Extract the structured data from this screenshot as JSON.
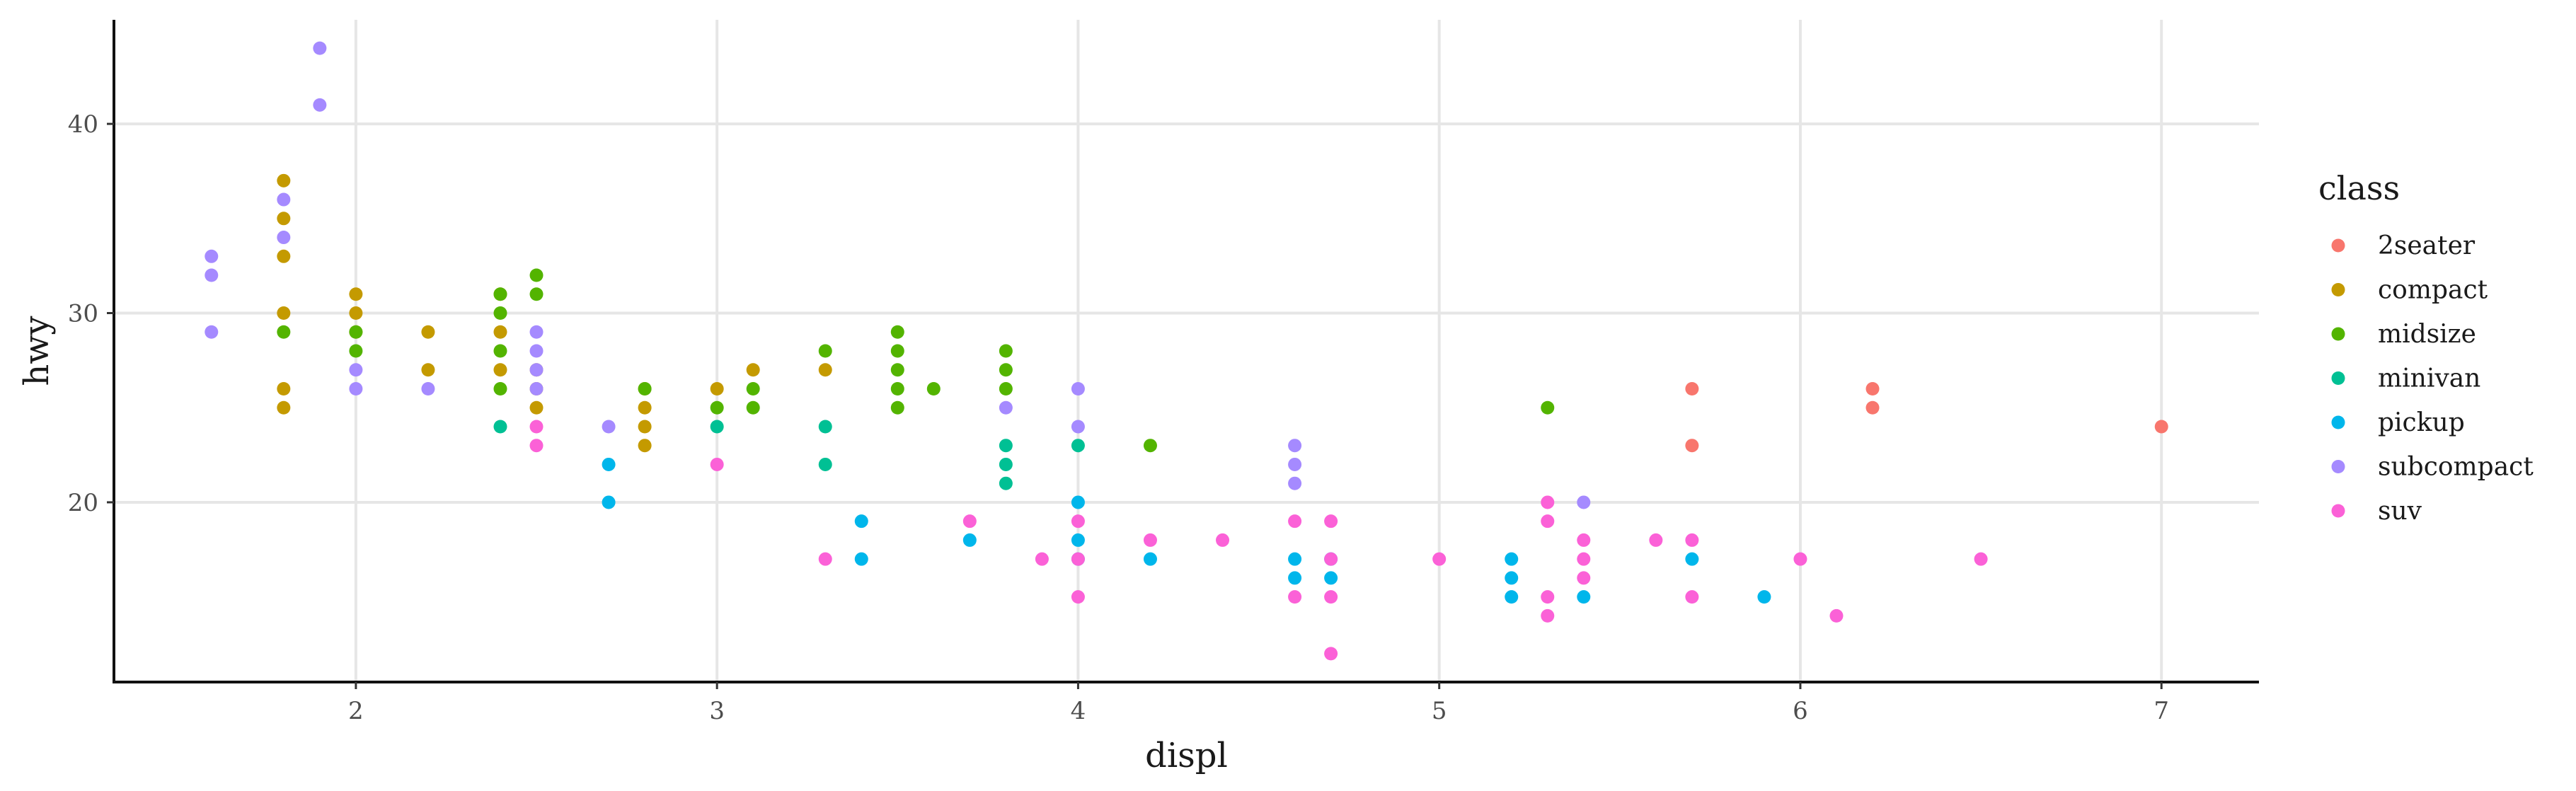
{
  "chart_data": {
    "type": "scatter",
    "title": "",
    "xlabel": "displ",
    "ylabel": "hwy",
    "xlim": [
      1.33,
      7.27
    ],
    "ylim": [
      10.5,
      45.5
    ],
    "xticks": [
      2,
      3,
      4,
      5,
      6,
      7
    ],
    "yticks": [
      20,
      30,
      40
    ],
    "grid": true,
    "legend": {
      "title": "class",
      "position": "right"
    },
    "series": [
      {
        "name": "2seater",
        "color": "#F8766D",
        "points": [
          [
            5.7,
            26
          ],
          [
            5.7,
            23
          ],
          [
            6.2,
            26
          ],
          [
            6.2,
            25
          ],
          [
            7.0,
            24
          ]
        ]
      },
      {
        "name": "compact",
        "color": "#C49A00",
        "points": [
          [
            1.8,
            37
          ],
          [
            1.8,
            35
          ],
          [
            1.8,
            33
          ],
          [
            1.8,
            30
          ],
          [
            1.8,
            26
          ],
          [
            1.8,
            25
          ],
          [
            2.0,
            31
          ],
          [
            2.0,
            30
          ],
          [
            2.0,
            29
          ],
          [
            2.2,
            29
          ],
          [
            2.2,
            27
          ],
          [
            2.4,
            31
          ],
          [
            2.4,
            29
          ],
          [
            2.4,
            27
          ],
          [
            2.5,
            27
          ],
          [
            2.5,
            26
          ],
          [
            2.5,
            25
          ],
          [
            2.8,
            26
          ],
          [
            2.8,
            25
          ],
          [
            2.8,
            24
          ],
          [
            2.8,
            23
          ],
          [
            3.0,
            26
          ],
          [
            3.1,
            27
          ],
          [
            3.3,
            27
          ]
        ]
      },
      {
        "name": "midsize",
        "color": "#53B400",
        "points": [
          [
            1.8,
            29
          ],
          [
            2.0,
            29
          ],
          [
            2.0,
            28
          ],
          [
            2.4,
            31
          ],
          [
            2.4,
            30
          ],
          [
            2.4,
            28
          ],
          [
            2.4,
            26
          ],
          [
            2.5,
            32
          ],
          [
            2.5,
            31
          ],
          [
            2.8,
            26
          ],
          [
            3.0,
            25
          ],
          [
            3.1,
            26
          ],
          [
            3.1,
            25
          ],
          [
            3.3,
            28
          ],
          [
            3.5,
            29
          ],
          [
            3.5,
            28
          ],
          [
            3.5,
            27
          ],
          [
            3.5,
            26
          ],
          [
            3.5,
            25
          ],
          [
            3.6,
            26
          ],
          [
            3.8,
            28
          ],
          [
            3.8,
            27
          ],
          [
            3.8,
            26
          ],
          [
            4.2,
            23
          ],
          [
            5.3,
            25
          ]
        ]
      },
      {
        "name": "minivan",
        "color": "#00C094",
        "points": [
          [
            2.4,
            24
          ],
          [
            3.0,
            24
          ],
          [
            3.3,
            24
          ],
          [
            3.3,
            22
          ],
          [
            3.8,
            23
          ],
          [
            3.8,
            22
          ],
          [
            3.8,
            21
          ],
          [
            4.0,
            23
          ]
        ]
      },
      {
        "name": "pickup",
        "color": "#00B6EB",
        "points": [
          [
            2.7,
            22
          ],
          [
            2.7,
            20
          ],
          [
            3.4,
            19
          ],
          [
            3.4,
            17
          ],
          [
            3.7,
            18
          ],
          [
            4.0,
            20
          ],
          [
            4.0,
            18
          ],
          [
            4.0,
            17
          ],
          [
            4.2,
            17
          ],
          [
            4.6,
            17
          ],
          [
            4.6,
            16
          ],
          [
            4.7,
            17
          ],
          [
            4.7,
            16
          ],
          [
            5.2,
            17
          ],
          [
            5.2,
            16
          ],
          [
            5.2,
            15
          ],
          [
            5.4,
            15
          ],
          [
            5.7,
            17
          ],
          [
            5.9,
            15
          ]
        ]
      },
      {
        "name": "subcompact",
        "color": "#A58AFF",
        "points": [
          [
            1.6,
            33
          ],
          [
            1.6,
            32
          ],
          [
            1.6,
            29
          ],
          [
            1.8,
            36
          ],
          [
            1.8,
            34
          ],
          [
            1.9,
            44
          ],
          [
            1.9,
            41
          ],
          [
            2.0,
            27
          ],
          [
            2.0,
            26
          ],
          [
            2.2,
            26
          ],
          [
            2.5,
            29
          ],
          [
            2.5,
            28
          ],
          [
            2.5,
            27
          ],
          [
            2.5,
            26
          ],
          [
            2.7,
            24
          ],
          [
            3.8,
            25
          ],
          [
            4.0,
            26
          ],
          [
            4.0,
            24
          ],
          [
            4.6,
            23
          ],
          [
            4.6,
            22
          ],
          [
            4.6,
            21
          ],
          [
            5.4,
            20
          ]
        ]
      },
      {
        "name": "suv",
        "color": "#FB61D7",
        "points": [
          [
            2.5,
            24
          ],
          [
            2.5,
            23
          ],
          [
            3.0,
            22
          ],
          [
            3.3,
            17
          ],
          [
            3.7,
            19
          ],
          [
            3.9,
            17
          ],
          [
            4.0,
            19
          ],
          [
            4.0,
            17
          ],
          [
            4.0,
            15
          ],
          [
            4.2,
            18
          ],
          [
            4.4,
            18
          ],
          [
            4.6,
            19
          ],
          [
            4.6,
            15
          ],
          [
            4.7,
            19
          ],
          [
            4.7,
            17
          ],
          [
            4.7,
            15
          ],
          [
            4.7,
            12
          ],
          [
            5.0,
            17
          ],
          [
            5.3,
            20
          ],
          [
            5.3,
            19
          ],
          [
            5.3,
            15
          ],
          [
            5.3,
            14
          ],
          [
            5.4,
            18
          ],
          [
            5.4,
            17
          ],
          [
            5.4,
            16
          ],
          [
            5.6,
            18
          ],
          [
            5.7,
            18
          ],
          [
            5.7,
            15
          ],
          [
            6.0,
            17
          ],
          [
            6.1,
            14
          ],
          [
            6.5,
            17
          ]
        ]
      }
    ]
  }
}
